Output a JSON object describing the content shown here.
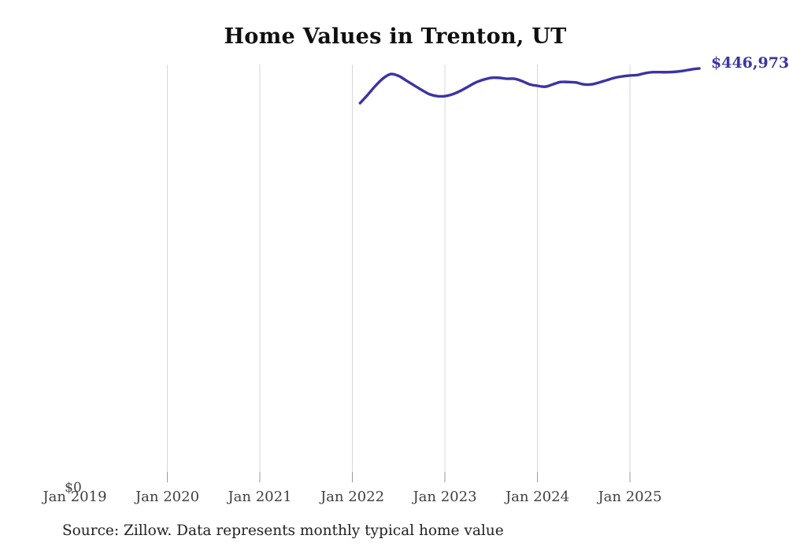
{
  "title": "Home Values in Trenton, UT",
  "source_note": "Source: Zillow. Data represents monthly typical home value",
  "y_axis": {
    "zero_label": "$0"
  },
  "latest_value_label": "$446,973",
  "colors": {
    "line": "#3b34a3",
    "latest_label": "#3b34a3",
    "grid": "#d8d8d8",
    "grid_tick": "#9b9b9b",
    "axis_text": "#3f3f3f",
    "title_text": "#0f0f0f",
    "source_text": "#222222",
    "background": "#ffffff"
  },
  "chart_data": {
    "type": "line",
    "title": "Home Values in Trenton, UT",
    "xlabel": "",
    "ylabel": "",
    "ylim": [
      0,
      480000
    ],
    "grid": "vertical-only",
    "legend": "none",
    "x_tick_labels": [
      "Jan 2019",
      "Jan 2020",
      "Jan 2021",
      "Jan 2022",
      "Jan 2023",
      "Jan 2024",
      "Jan 2025"
    ],
    "end_annotation": "$446,973",
    "series": [
      {
        "name": "Typical home value",
        "months": [
          "2022-02",
          "2022-03",
          "2022-04",
          "2022-05",
          "2022-06",
          "2022-07",
          "2022-08",
          "2022-09",
          "2022-10",
          "2022-11",
          "2022-12",
          "2023-01",
          "2023-02",
          "2023-03",
          "2023-04",
          "2023-05",
          "2023-06",
          "2023-07",
          "2023-08",
          "2023-09",
          "2023-10",
          "2023-11",
          "2023-12",
          "2024-01",
          "2024-02",
          "2024-03",
          "2024-04",
          "2024-05",
          "2024-06",
          "2024-07",
          "2024-08",
          "2024-09",
          "2024-10",
          "2024-11",
          "2024-12",
          "2025-01",
          "2025-02",
          "2025-03",
          "2025-04",
          "2025-05",
          "2025-06",
          "2025-07",
          "2025-08",
          "2025-09",
          "2025-10"
        ],
        "values": [
          410000,
          419000,
          428500,
          436500,
          441000,
          439000,
          434000,
          429000,
          424000,
          419500,
          417500,
          417500,
          419500,
          423000,
          427500,
          432000,
          435000,
          437000,
          437000,
          436000,
          436000,
          433500,
          430000,
          428500,
          427500,
          430000,
          432500,
          432500,
          432000,
          430000,
          430000,
          432000,
          434500,
          437000,
          438500,
          439500,
          440000,
          442000,
          443000,
          443000,
          443000,
          443500,
          444500,
          446000,
          446973
        ]
      }
    ]
  }
}
